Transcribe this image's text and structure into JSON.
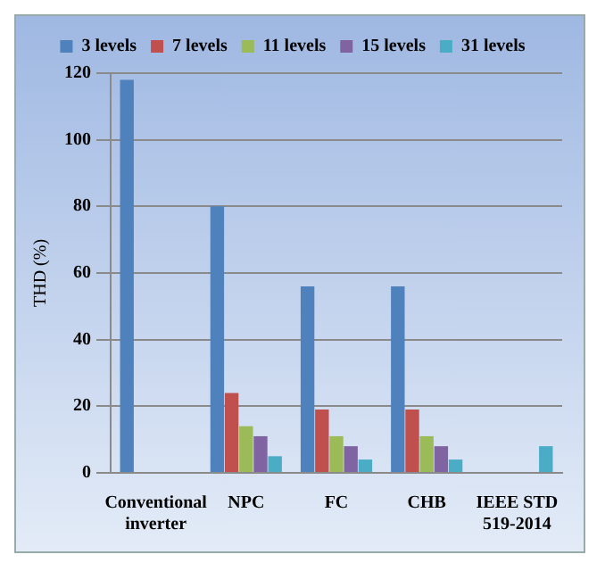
{
  "chart_data": {
    "type": "bar",
    "ylabel": "THD (%)",
    "categories": [
      "Conventional inverter",
      "NPC",
      "FC",
      "CHB",
      "IEEE STD 519-2014"
    ],
    "series": [
      {
        "name": "3 levels",
        "color": "#4f81bd",
        "values": [
          118,
          80,
          56,
          56,
          null
        ]
      },
      {
        "name": "7 levels",
        "color": "#c0504d",
        "values": [
          null,
          24,
          19,
          19,
          null
        ]
      },
      {
        "name": "11 levels",
        "color": "#9bbb59",
        "values": [
          null,
          14,
          11,
          11,
          null
        ]
      },
      {
        "name": "15 levels",
        "color": "#8064a2",
        "values": [
          null,
          11,
          8,
          8,
          null
        ]
      },
      {
        "name": "31 levels",
        "color": "#4bacc6",
        "values": [
          null,
          5,
          4,
          4,
          8
        ]
      }
    ],
    "ylim": [
      0,
      120
    ],
    "yticks": [
      0,
      20,
      40,
      60,
      80,
      100,
      120
    ],
    "grid": "y",
    "legend": "top"
  }
}
